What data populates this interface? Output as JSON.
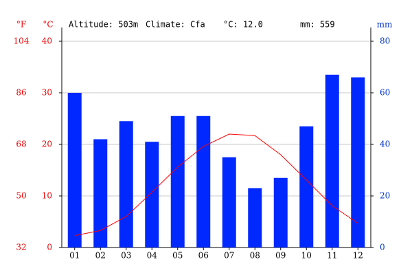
{
  "chart_data": {
    "type": "bar",
    "header": [
      "Altitude: 503m",
      "Climate: Cfa",
      "°C: 12.0",
      "mm: 559"
    ],
    "categories": [
      "01",
      "02",
      "03",
      "04",
      "05",
      "06",
      "07",
      "08",
      "09",
      "10",
      "11",
      "12"
    ],
    "series": [
      {
        "name": "mm",
        "type": "bar",
        "axis": "y2",
        "color": "#0028ff",
        "values": [
          60,
          42,
          49,
          41,
          51,
          51,
          35,
          23,
          27,
          47,
          67,
          66
        ]
      },
      {
        "name": "°C",
        "type": "line",
        "axis": "y",
        "color": "#ff0000",
        "values": [
          2.3,
          3.3,
          6.0,
          10.7,
          15.6,
          19.6,
          22.0,
          21.7,
          18.0,
          13.1,
          8.1,
          4.7
        ]
      }
    ],
    "f_label": "°F",
    "ylim": [
      0,
      40
    ],
    "yticks": [
      0,
      10,
      20,
      30,
      40
    ],
    "y2lim": [
      0,
      80
    ],
    "y2ticks": [
      0,
      20,
      40,
      60,
      80
    ],
    "flim": [
      32,
      104
    ],
    "fticks": [
      32,
      50,
      68,
      86,
      104
    ],
    "grid": true
  }
}
